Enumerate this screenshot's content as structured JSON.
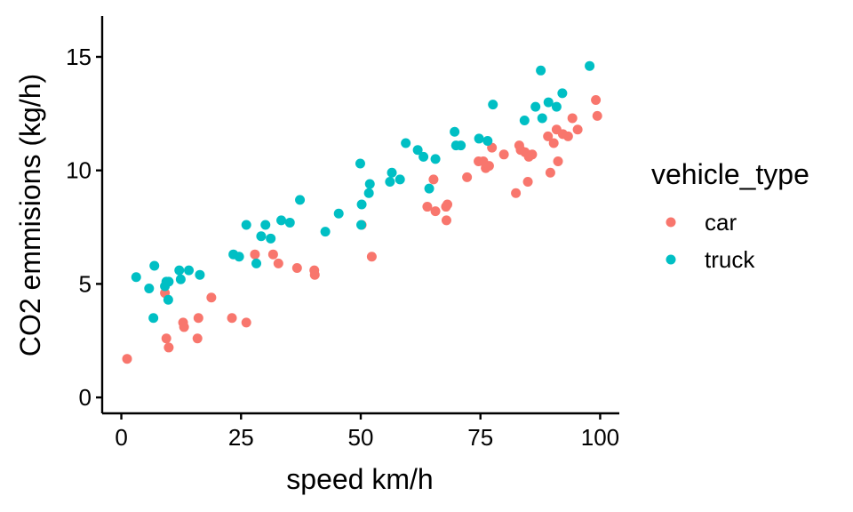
{
  "chart_data": {
    "type": "scatter",
    "xlabel": "speed km/h",
    "ylabel": "CO2 emmisions (kg/h)",
    "xlim": [
      -4,
      104
    ],
    "ylim": [
      -0.7,
      16.8
    ],
    "xticks": [
      0,
      25,
      50,
      75,
      100
    ],
    "yticks": [
      0,
      5,
      10,
      15
    ],
    "grid": false,
    "legend": {
      "title": "vehicle_type",
      "position": "right"
    },
    "series": [
      {
        "name": "car",
        "color": "#F8766D",
        "points": [
          [
            1.2,
            1.7
          ],
          [
            9.1,
            4.6
          ],
          [
            9.4,
            2.6
          ],
          [
            9.9,
            2.2
          ],
          [
            12.9,
            3.3
          ],
          [
            13.1,
            3.1
          ],
          [
            15.9,
            2.6
          ],
          [
            16.1,
            3.5
          ],
          [
            18.8,
            4.4
          ],
          [
            23.1,
            3.5
          ],
          [
            26.1,
            3.3
          ],
          [
            27.9,
            6.3
          ],
          [
            31.7,
            6.3
          ],
          [
            32.8,
            5.9
          ],
          [
            36.7,
            5.7
          ],
          [
            40.3,
            5.6
          ],
          [
            40.4,
            5.4
          ],
          [
            50.2,
            7.6
          ],
          [
            52.3,
            6.2
          ],
          [
            63.9,
            8.4
          ],
          [
            65.2,
            9.6
          ],
          [
            65.6,
            8.2
          ],
          [
            67.8,
            8.4
          ],
          [
            68.1,
            8.5
          ],
          [
            67.9,
            7.8
          ],
          [
            72.2,
            9.7
          ],
          [
            74.6,
            10.4
          ],
          [
            75.6,
            10.4
          ],
          [
            76.1,
            10.1
          ],
          [
            76.8,
            10.2
          ],
          [
            77.4,
            11.0
          ],
          [
            79.9,
            10.7
          ],
          [
            82.4,
            9.0
          ],
          [
            83.1,
            11.1
          ],
          [
            83.4,
            10.9
          ],
          [
            84.3,
            10.8
          ],
          [
            84.9,
            9.5
          ],
          [
            85.1,
            10.6
          ],
          [
            85.8,
            10.7
          ],
          [
            89.1,
            11.5
          ],
          [
            89.6,
            9.9
          ],
          [
            90.3,
            11.2
          ],
          [
            90.9,
            11.8
          ],
          [
            91.2,
            10.4
          ],
          [
            92.2,
            11.6
          ],
          [
            93.3,
            11.5
          ],
          [
            94.2,
            12.3
          ],
          [
            95.3,
            11.8
          ],
          [
            99.1,
            13.1
          ],
          [
            99.4,
            12.4
          ]
        ]
      },
      {
        "name": "truck",
        "color": "#00BFC4",
        "points": [
          [
            3.1,
            5.3
          ],
          [
            5.8,
            4.8
          ],
          [
            6.7,
            3.5
          ],
          [
            6.9,
            5.8
          ],
          [
            9.1,
            4.9
          ],
          [
            9.4,
            5.1
          ],
          [
            9.8,
            4.3
          ],
          [
            9.9,
            5.1
          ],
          [
            12.1,
            5.6
          ],
          [
            12.4,
            5.2
          ],
          [
            14.1,
            5.6
          ],
          [
            16.4,
            5.4
          ],
          [
            23.4,
            6.3
          ],
          [
            24.6,
            6.2
          ],
          [
            26.1,
            7.6
          ],
          [
            28.2,
            5.9
          ],
          [
            29.2,
            7.1
          ],
          [
            30.1,
            7.6
          ],
          [
            31.2,
            7.0
          ],
          [
            33.4,
            7.8
          ],
          [
            35.2,
            7.7
          ],
          [
            37.3,
            8.7
          ],
          [
            42.6,
            7.3
          ],
          [
            45.4,
            8.1
          ],
          [
            49.9,
            10.3
          ],
          [
            50.1,
            7.6
          ],
          [
            50.2,
            8.5
          ],
          [
            51.7,
            9.0
          ],
          [
            51.9,
            9.4
          ],
          [
            56.1,
            9.5
          ],
          [
            56.5,
            9.9
          ],
          [
            58.2,
            9.6
          ],
          [
            59.4,
            11.2
          ],
          [
            61.9,
            10.9
          ],
          [
            63.1,
            10.6
          ],
          [
            64.3,
            9.2
          ],
          [
            65.6,
            10.5
          ],
          [
            69.6,
            11.7
          ],
          [
            69.9,
            11.1
          ],
          [
            70.9,
            11.1
          ],
          [
            74.7,
            11.4
          ],
          [
            76.5,
            11.3
          ],
          [
            77.6,
            12.9
          ],
          [
            84.2,
            12.2
          ],
          [
            86.5,
            12.8
          ],
          [
            87.6,
            14.4
          ],
          [
            87.9,
            12.3
          ],
          [
            89.2,
            13.0
          ],
          [
            90.9,
            12.8
          ],
          [
            92.1,
            13.4
          ],
          [
            97.8,
            14.6
          ]
        ]
      }
    ]
  }
}
